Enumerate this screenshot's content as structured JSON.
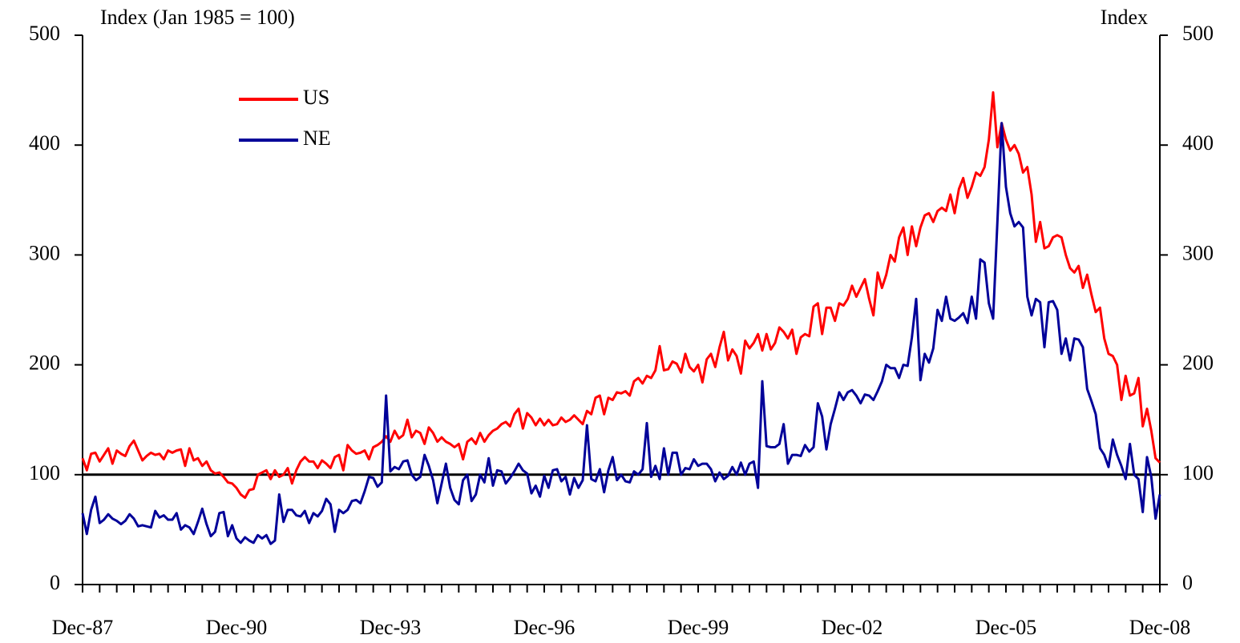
{
  "chart_data": {
    "type": "line",
    "y_label": "Index (Jan 1985 = 100)",
    "y2_label": "Index",
    "categories": [
      "Dec-87",
      null,
      null,
      null,
      null,
      null,
      null,
      null,
      null,
      null,
      null,
      null,
      null,
      null,
      null,
      null,
      null,
      null,
      null,
      null,
      null,
      null,
      null,
      null,
      null,
      null,
      null,
      null,
      null,
      null,
      null,
      null,
      null,
      null,
      null,
      null,
      "Dec-90",
      null,
      null,
      null,
      null,
      null,
      null,
      null,
      null,
      null,
      null,
      null,
      null,
      null,
      null,
      null,
      null,
      null,
      null,
      null,
      null,
      null,
      null,
      null,
      null,
      null,
      null,
      null,
      null,
      null,
      null,
      null,
      null,
      null,
      null,
      null,
      "Dec-93",
      null,
      null,
      null,
      null,
      null,
      null,
      null,
      null,
      null,
      null,
      null,
      null,
      null,
      null,
      null,
      null,
      null,
      null,
      null,
      null,
      null,
      null,
      null,
      null,
      null,
      null,
      null,
      null,
      null,
      null,
      null,
      null,
      null,
      null,
      null,
      "Dec-96",
      null,
      null,
      null,
      null,
      null,
      null,
      null,
      null,
      null,
      null,
      null,
      null,
      null,
      null,
      null,
      null,
      null,
      null,
      null,
      null,
      null,
      null,
      null,
      null,
      null,
      null,
      null,
      null,
      null,
      null,
      null,
      null,
      null,
      null,
      null,
      "Dec-99",
      null,
      null,
      null,
      null,
      null,
      null,
      null,
      null,
      null,
      null,
      null,
      null,
      null,
      null,
      null,
      null,
      null,
      null,
      null,
      null,
      null,
      null,
      null,
      null,
      null,
      null,
      null,
      null,
      null,
      null,
      null,
      null,
      null,
      null,
      null,
      "Dec-02",
      null,
      null,
      null,
      null,
      null,
      null,
      null,
      null,
      null,
      null,
      null,
      null,
      null,
      null,
      null,
      null,
      null,
      null,
      null,
      null,
      null,
      null,
      null,
      null,
      null,
      null,
      null,
      null,
      null,
      null,
      null,
      null,
      null,
      null,
      null,
      "Dec-05",
      null,
      null,
      null,
      null,
      null,
      null,
      null,
      null,
      null,
      null,
      null,
      null,
      null,
      null,
      null,
      null,
      null,
      null,
      null,
      null,
      null,
      null,
      null,
      null,
      null,
      null,
      null,
      null,
      null,
      null,
      null,
      null,
      null,
      null,
      null,
      "Dec-08"
    ],
    "series": [
      {
        "name": "US",
        "color": "#ff0000",
        "values": [
          115,
          104,
          119,
          120,
          112,
          118,
          124,
          110,
          122,
          119,
          117,
          126,
          131,
          122,
          113,
          117,
          120,
          118,
          119,
          114,
          122,
          120,
          122,
          123,
          108,
          124,
          113,
          115,
          108,
          112,
          104,
          101,
          102,
          98,
          93,
          92,
          88,
          82,
          79,
          86,
          87,
          100,
          102,
          104,
          96,
          104,
          98,
          100,
          106,
          92,
          104,
          112,
          116,
          112,
          112,
          106,
          113,
          110,
          106,
          116,
          118,
          104,
          127,
          122,
          119,
          120,
          122,
          114,
          125,
          127,
          130,
          135,
          130,
          140,
          133,
          136,
          150,
          134,
          140,
          138,
          128,
          143,
          138,
          130,
          134,
          130,
          128,
          125,
          128,
          114,
          130,
          133,
          128,
          138,
          130,
          136,
          140,
          142,
          146,
          148,
          144,
          155,
          160,
          142,
          156,
          152,
          145,
          151,
          145,
          150,
          145,
          146,
          152,
          148,
          150,
          154,
          150,
          146,
          158,
          155,
          170,
          172,
          155,
          170,
          168,
          175,
          174,
          176,
          172,
          185,
          188,
          183,
          190,
          188,
          195,
          217,
          195,
          196,
          203,
          201,
          193,
          210,
          198,
          194,
          200,
          184,
          205,
          210,
          198,
          216,
          230,
          204,
          214,
          208,
          192,
          222,
          215,
          220,
          228,
          213,
          228,
          214,
          220,
          234,
          230,
          224,
          232,
          210,
          225,
          228,
          226,
          253,
          256,
          228,
          252,
          252,
          240,
          256,
          254,
          260,
          272,
          262,
          270,
          278,
          260,
          245,
          284,
          270,
          282,
          300,
          294,
          316,
          325,
          300,
          326,
          308,
          325,
          336,
          338,
          330,
          340,
          343,
          340,
          355,
          338,
          360,
          370,
          352,
          362,
          375,
          372,
          380,
          405,
          448,
          398,
          420,
          405,
          395,
          400,
          392,
          375,
          380,
          355,
          312,
          330,
          306,
          308,
          316,
          318,
          316,
          300,
          288,
          284,
          290,
          270,
          282,
          264,
          248,
          252,
          224,
          210,
          208,
          200,
          168,
          190,
          172,
          174,
          188,
          144,
          160,
          140,
          115,
          111
        ]
      },
      {
        "name": "NE",
        "color": "#000099",
        "values": [
          65,
          46,
          68,
          80,
          56,
          59,
          64,
          60,
          58,
          55,
          58,
          64,
          60,
          53,
          54,
          53,
          52,
          67,
          61,
          63,
          59,
          59,
          65,
          50,
          54,
          52,
          46,
          57,
          69,
          55,
          44,
          48,
          65,
          66,
          44,
          54,
          42,
          38,
          43,
          40,
          38,
          45,
          42,
          45,
          37,
          40,
          82,
          57,
          68,
          68,
          63,
          62,
          67,
          56,
          65,
          62,
          67,
          78,
          73,
          48,
          68,
          65,
          68,
          76,
          77,
          74,
          85,
          98,
          97,
          89,
          93,
          172,
          103,
          107,
          105,
          112,
          113,
          100,
          95,
          98,
          118,
          108,
          95,
          74,
          92,
          110,
          88,
          77,
          73,
          95,
          100,
          76,
          82,
          100,
          93,
          115,
          90,
          104,
          103,
          92,
          97,
          103,
          110,
          104,
          101,
          83,
          90,
          80,
          99,
          88,
          104,
          105,
          94,
          98,
          82,
          97,
          88,
          95,
          145,
          96,
          94,
          105,
          84,
          104,
          116,
          95,
          100,
          94,
          93,
          103,
          100,
          105,
          147,
          98,
          108,
          96,
          124,
          100,
          120,
          120,
          100,
          106,
          105,
          114,
          108,
          110,
          110,
          105,
          94,
          102,
          96,
          99,
          107,
          100,
          111,
          100,
          110,
          112,
          88,
          185,
          126,
          125,
          125,
          128,
          146,
          110,
          118,
          118,
          117,
          127,
          121,
          125,
          165,
          153,
          123,
          146,
          160,
          175,
          168,
          175,
          177,
          172,
          165,
          173,
          172,
          168,
          176,
          185,
          200,
          197,
          197,
          188,
          200,
          199,
          225,
          260,
          186,
          210,
          202,
          215,
          250,
          240,
          262,
          242,
          240,
          243,
          247,
          238,
          262,
          242,
          296,
          293,
          256,
          242,
          330,
          420,
          362,
          338,
          326,
          330,
          325,
          262,
          245,
          260,
          257,
          216,
          257,
          258,
          250,
          210,
          224,
          204,
          224,
          223,
          216,
          178,
          167,
          155,
          124,
          118,
          107,
          132,
          118,
          108,
          96,
          128,
          100,
          96,
          66,
          116,
          98,
          60,
          82
        ]
      }
    ],
    "ylim": [
      0,
      500
    ],
    "yticks": [
      0,
      100,
      200,
      300,
      400,
      500
    ],
    "y2lim": [
      0,
      500
    ],
    "y2ticks": [
      0,
      100,
      200,
      300,
      400,
      500
    ],
    "hline": 100,
    "legend": "upper left"
  }
}
